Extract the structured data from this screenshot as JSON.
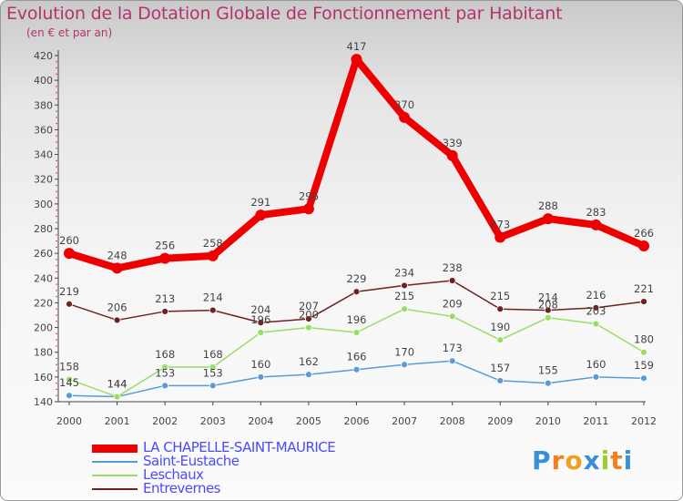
{
  "title": "Evolution de la Dotation Globale de Fonctionnement par Habitant",
  "subtitle": "(en € et par an)",
  "logo_text": "Proxiti",
  "colors": {
    "title": "#b5326e",
    "legend_text": "#4a4aff",
    "axis": "#444444"
  },
  "chart_data": {
    "type": "line",
    "title": "Evolution de la Dotation Globale de Fonctionnement par Habitant",
    "subtitle": "(en € et par an)",
    "xlabel": "",
    "ylabel": "",
    "x": [
      "2000",
      "2001",
      "2002",
      "2003",
      "2004",
      "2005",
      "2006",
      "2007",
      "2008",
      "2009",
      "2010",
      "2011",
      "2012"
    ],
    "ylim": [
      140,
      420
    ],
    "yticks": [
      140,
      160,
      180,
      200,
      220,
      240,
      260,
      280,
      300,
      320,
      340,
      360,
      380,
      400,
      420
    ],
    "grid": false,
    "legend_position": "bottom-left",
    "series": [
      {
        "name": "LA CHAPELLE-SAINT-MAURICE",
        "color": "#ee0000",
        "values": [
          260,
          248,
          256,
          258,
          291,
          296,
          417,
          370,
          339,
          273,
          288,
          283,
          266
        ]
      },
      {
        "name": "Saint-Eustache",
        "color": "#5b9bd5",
        "values": [
          145,
          144,
          153,
          153,
          160,
          162,
          166,
          170,
          173,
          157,
          155,
          160,
          159
        ]
      },
      {
        "name": "Leschaux",
        "color": "#99dd66",
        "values": [
          158,
          144,
          168,
          168,
          196,
          200,
          196,
          215,
          209,
          190,
          208,
          203,
          180
        ]
      },
      {
        "name": "Entrevernes",
        "color": "#702020",
        "values": [
          219,
          206,
          213,
          214,
          204,
          207,
          229,
          234,
          238,
          215,
          214,
          216,
          221
        ]
      }
    ]
  }
}
